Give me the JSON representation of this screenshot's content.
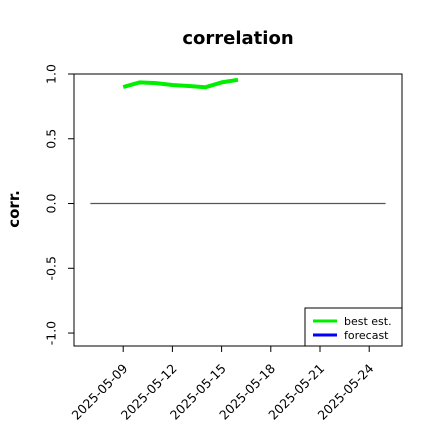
{
  "chart_data": {
    "type": "line",
    "title": "correlation",
    "ylabel": "corr.",
    "xlabel": "",
    "xlim": [
      "2025-05-06",
      "2025-05-26"
    ],
    "ylim": [
      -1.1,
      1.0
    ],
    "y_ticks": [
      {
        "value": -1.0,
        "label": "-1.0"
      },
      {
        "value": -0.5,
        "label": "-0.5"
      },
      {
        "value": 0.0,
        "label": "0.0"
      },
      {
        "value": 0.5,
        "label": "0.5"
      },
      {
        "value": 1.0,
        "label": "1.0"
      }
    ],
    "x_ticks": [
      {
        "date": "2025-05-09",
        "label": "2025-05-09",
        "color": "#000000"
      },
      {
        "date": "2025-05-12",
        "label": "2025-05-12",
        "color": "#000000"
      },
      {
        "date": "2025-05-15",
        "label": "2025-05-15",
        "color": "#228B22"
      },
      {
        "date": "2025-05-18",
        "label": "2025-05-18",
        "color": "#000000"
      },
      {
        "date": "2025-05-21",
        "label": "2025-05-21",
        "color": "#000000"
      },
      {
        "date": "2025-05-24",
        "label": "2025-05-24",
        "color": "#000000"
      }
    ],
    "reference_line": {
      "y": 0.0,
      "from": "2025-05-07",
      "to": "2025-05-25",
      "color": "#555555"
    },
    "series": [
      {
        "name": "best est.",
        "color": "#00ee00",
        "points": [
          {
            "x": "2025-05-09",
            "y": 0.9
          },
          {
            "x": "2025-05-10",
            "y": 0.935
          },
          {
            "x": "2025-05-11",
            "y": 0.93
          },
          {
            "x": "2025-05-12",
            "y": 0.915
          },
          {
            "x": "2025-05-13",
            "y": 0.907
          },
          {
            "x": "2025-05-14",
            "y": 0.897
          },
          {
            "x": "2025-05-15",
            "y": 0.935
          },
          {
            "x": "2025-05-16",
            "y": 0.955
          }
        ]
      },
      {
        "name": "forecast",
        "color": "#0000ff",
        "points": []
      }
    ],
    "legend": {
      "position": "bottom-right"
    }
  }
}
